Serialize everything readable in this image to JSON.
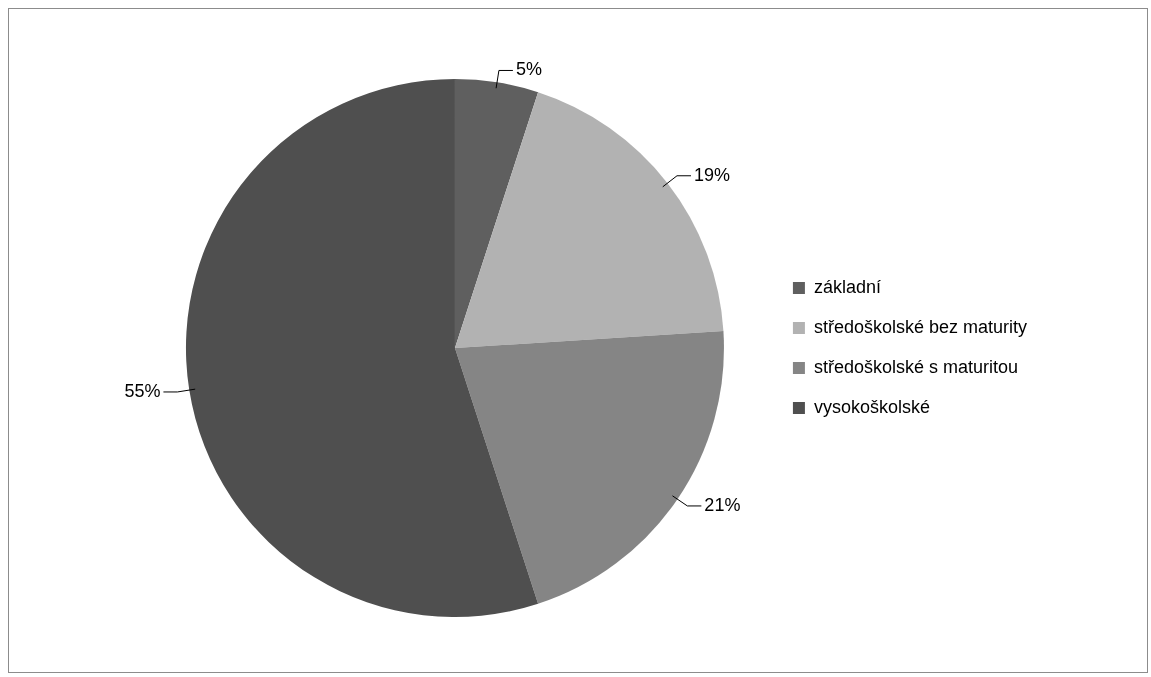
{
  "chart_data": {
    "type": "pie",
    "categories": [
      "základní",
      "středoškolské bez maturity",
      "středoškolské s maturitou",
      "vysokoškolské"
    ],
    "values": [
      5,
      19,
      21,
      55
    ],
    "colors": [
      "#5f5f5f",
      "#b2b2b2",
      "#858585",
      "#4f4f4f"
    ],
    "value_labels": [
      "5%",
      "19%",
      "21%",
      "55%"
    ],
    "legend": "right"
  }
}
